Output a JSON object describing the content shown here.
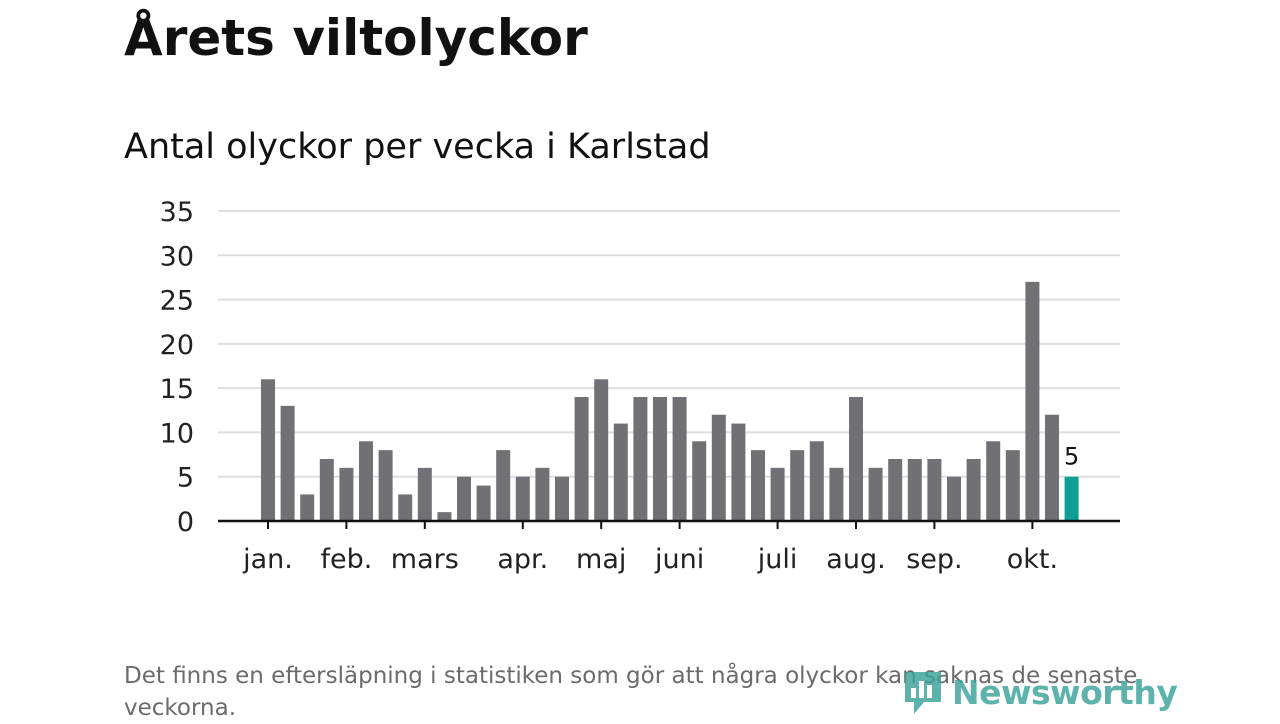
{
  "title": "Årets viltolyckor",
  "subtitle": "Antal olyckor per vecka i Karlstad",
  "footnote": "Det finns en eftersläpning i statistiken som gör att några olyckor kan saknas de senaste veckorna.",
  "brand": {
    "name": "Newsworthy",
    "icon": "newsworthy-logo-icon",
    "color": "#3aa39a"
  },
  "colors": {
    "bar": "#717075",
    "highlight": "#0d9e94",
    "grid": "#dedede",
    "axis": "#111111"
  },
  "chart_data": {
    "type": "bar",
    "title": "Antal olyckor per vecka i Karlstad",
    "xlabel": "",
    "ylabel": "",
    "ylim": [
      0,
      35
    ],
    "yticks": [
      0,
      5,
      10,
      15,
      20,
      25,
      30,
      35
    ],
    "grid": true,
    "weeks": [
      1,
      2,
      3,
      4,
      5,
      6,
      7,
      8,
      9,
      10,
      11,
      12,
      13,
      14,
      15,
      16,
      17,
      18,
      19,
      20,
      21,
      22,
      23,
      24,
      25,
      26,
      27,
      28,
      29,
      30,
      31,
      32,
      33,
      34,
      35,
      36,
      37,
      38,
      39,
      40,
      41,
      42
    ],
    "values": [
      16,
      13,
      3,
      7,
      6,
      9,
      8,
      3,
      6,
      1,
      5,
      4,
      8,
      5,
      6,
      5,
      14,
      16,
      11,
      14,
      14,
      14,
      9,
      12,
      11,
      8,
      6,
      8,
      9,
      6,
      14,
      6,
      7,
      7,
      7,
      5,
      7,
      9,
      8,
      27,
      12,
      5
    ],
    "highlight_index": 41,
    "highlight_label": "5",
    "month_ticks": [
      {
        "label": "jan.",
        "week": 1
      },
      {
        "label": "feb.",
        "week": 5
      },
      {
        "label": "mars",
        "week": 9
      },
      {
        "label": "apr.",
        "week": 14
      },
      {
        "label": "maj",
        "week": 18
      },
      {
        "label": "juni",
        "week": 22
      },
      {
        "label": "juli",
        "week": 27
      },
      {
        "label": "aug.",
        "week": 31
      },
      {
        "label": "sep.",
        "week": 35
      },
      {
        "label": "okt.",
        "week": 40
      }
    ]
  }
}
